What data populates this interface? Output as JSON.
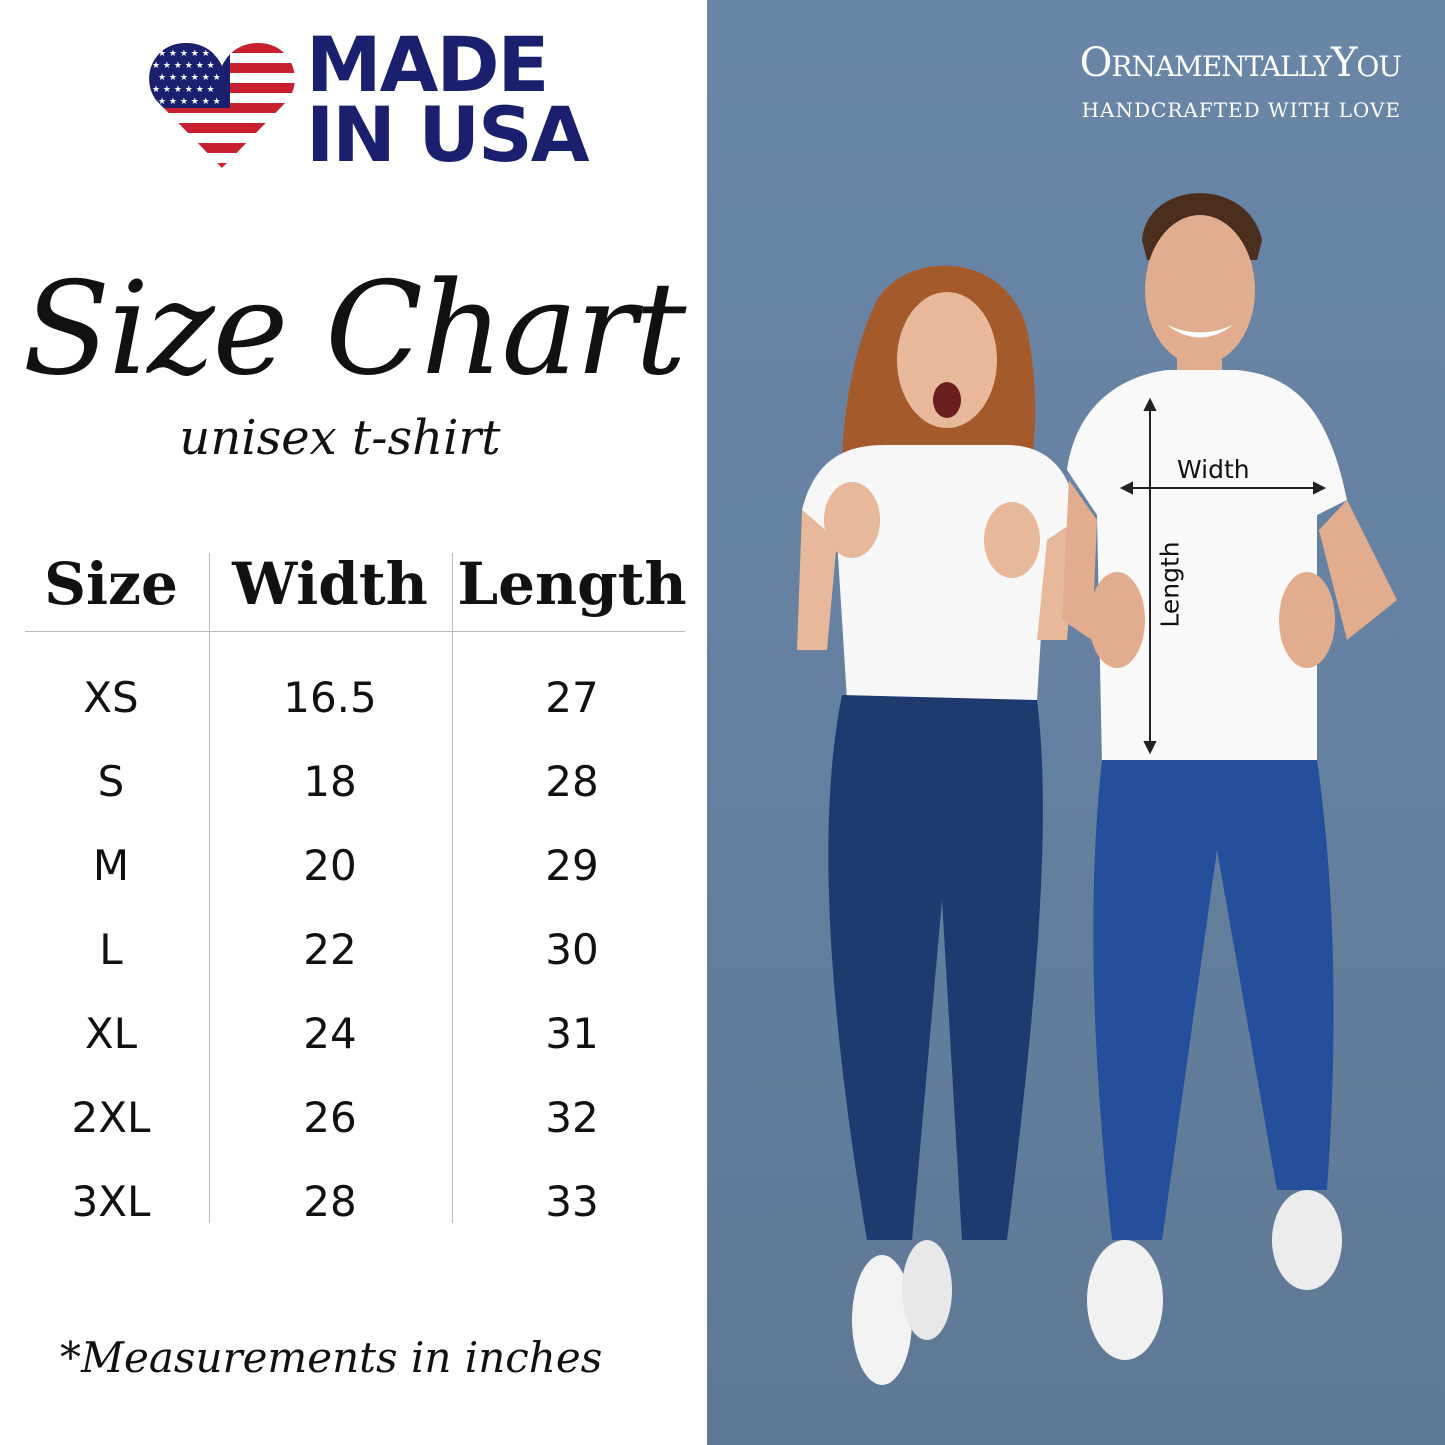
{
  "badge": {
    "line1": "MADE",
    "line2": "IN USA",
    "icon": "us-flag-heart-icon",
    "colors": {
      "navy": "#1a1f6e",
      "red": "#c8202f"
    }
  },
  "title": "Size Chart",
  "subtitle": "unisex t-shirt",
  "table": {
    "headers": [
      "Size",
      "Width",
      "Length"
    ],
    "rows": [
      [
        "XS",
        "16.5",
        "27"
      ],
      [
        "S",
        "18",
        "28"
      ],
      [
        "M",
        "20",
        "29"
      ],
      [
        "L",
        "22",
        "30"
      ],
      [
        "XL",
        "24",
        "31"
      ],
      [
        "2XL",
        "26",
        "32"
      ],
      [
        "3XL",
        "28",
        "33"
      ]
    ]
  },
  "footnote": "*Measurements in inches",
  "brand": {
    "name": "OrnamentallyYou",
    "tagline": "HANDCRAFTED WITH LOVE"
  },
  "photo": {
    "width_label": "Width",
    "length_label": "Length",
    "background": "#6a86a7"
  }
}
